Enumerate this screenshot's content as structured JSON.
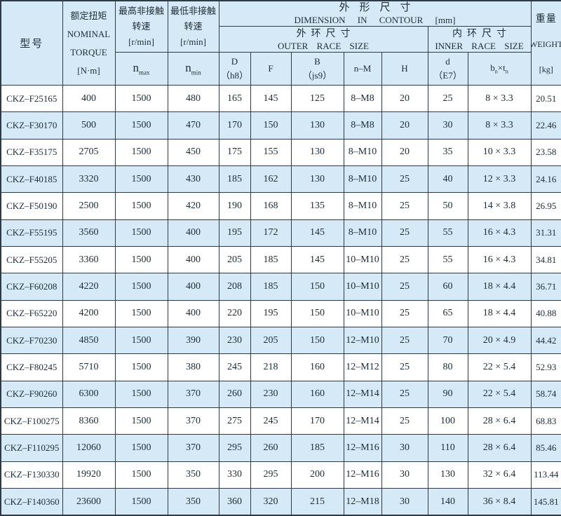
{
  "colors": {
    "header_and_zebra_fill": "#d5eaf6",
    "row_white_fill": "#ffffff",
    "grid_border": "#2c3b45",
    "text": "#1d2b35"
  },
  "table": {
    "header": {
      "model": "型号",
      "torque_lines": [
        "额定扭矩",
        "NOMINAL",
        "TORQUE",
        "[N·m]"
      ],
      "nmax_lines": [
        "最高非接触",
        "转速",
        "[r/min]"
      ],
      "nmin_lines": [
        "最低非接触",
        "转速",
        "[r/min]"
      ],
      "nmax_sym": {
        "base": "n",
        "sub": "max"
      },
      "nmin_sym": {
        "base": "n",
        "sub": "min"
      },
      "dimension_cn": "外形尺寸",
      "dimension_en": "DIMENSION IN CONTOUR [mm]",
      "outer_cn": "外环尺寸",
      "outer_en": "OUTER RACE SIZE",
      "inner_cn": "内环尺寸",
      "inner_en": "INNER RACE SIZE",
      "weight_lines": [
        "重量",
        "WEIGHT",
        "[kg]"
      ],
      "col_D": [
        "D",
        "（h8）"
      ],
      "col_F": "F",
      "col_B": [
        "B",
        "（js9）"
      ],
      "col_nM": "n–M",
      "col_H": "H",
      "col_d": [
        "d",
        "（E7）"
      ],
      "col_bt": {
        "b": "b",
        "b_sub": "n",
        "times": "×",
        "t": "t",
        "t_sub": "n"
      }
    },
    "col_keys": [
      "model",
      "torque",
      "n-max",
      "n-min",
      "D",
      "F",
      "B",
      "n-M",
      "H",
      "d",
      "b-t",
      "weight"
    ],
    "rows": [
      [
        "CKZ–F25165",
        "400",
        "1500",
        "480",
        "165",
        "145",
        "125",
        "8–M8",
        "20",
        "25",
        "8 × 3.3",
        "20.51"
      ],
      [
        "CKZ–F30170",
        "500",
        "1500",
        "470",
        "170",
        "150",
        "130",
        "8–M8",
        "20",
        "30",
        "8 × 3.3",
        "22.46"
      ],
      [
        "CKZ–F35175",
        "2705",
        "1500",
        "450",
        "175",
        "155",
        "130",
        "8–M10",
        "20",
        "35",
        "10 × 3.3",
        "23.58"
      ],
      [
        "CKZ–F40185",
        "3320",
        "1500",
        "430",
        "185",
        "162",
        "130",
        "8–M10",
        "25",
        "40",
        "12 × 3.3",
        "24.16"
      ],
      [
        "CKZ–F50190",
        "2500",
        "1500",
        "420",
        "190",
        "168",
        "135",
        "8–M10",
        "25",
        "50",
        "14 × 3.8",
        "26.95"
      ],
      [
        "CKZ–F55195",
        "3560",
        "1500",
        "400",
        "195",
        "172",
        "145",
        "8–M10",
        "25",
        "55",
        "16 × 4.3",
        "31.31"
      ],
      [
        "CKZ–F55205",
        "3360",
        "1500",
        "400",
        "205",
        "185",
        "145",
        "10–M10",
        "25",
        "55",
        "16 × 4.3",
        "34.81"
      ],
      [
        "CKZ–F60208",
        "4220",
        "1500",
        "400",
        "208",
        "185",
        "150",
        "10–M10",
        "25",
        "60",
        "18 × 4.4",
        "36.71"
      ],
      [
        "CKZ–F65220",
        "4200",
        "1500",
        "400",
        "220",
        "195",
        "150",
        "10–M10",
        "25",
        "65",
        "18 × 4.4",
        "40.88"
      ],
      [
        "CKZ–F70230",
        "4850",
        "1500",
        "390",
        "230",
        "205",
        "150",
        "12–M10",
        "25",
        "70",
        "20 × 4.9",
        "44.42"
      ],
      [
        "CKZ–F80245",
        "5710",
        "1500",
        "380",
        "245",
        "218",
        "160",
        "12–M12",
        "25",
        "80",
        "22 × 5.4",
        "52.93"
      ],
      [
        "CKZ–F90260",
        "6300",
        "1500",
        "370",
        "260",
        "230",
        "160",
        "12–M14",
        "25",
        "90",
        "22 × 5.4",
        "58.74"
      ],
      [
        "CKZ–F100275",
        "8360",
        "1500",
        "370",
        "275",
        "245",
        "170",
        "12–M14",
        "25",
        "100",
        "28 × 6.4",
        "68.83"
      ],
      [
        "CKZ–F110295",
        "12060",
        "1500",
        "370",
        "295",
        "260",
        "185",
        "12–M16",
        "30",
        "110",
        "28 × 6.4",
        "85.46"
      ],
      [
        "CKZ–F130330",
        "19920",
        "1500",
        "350",
        "330",
        "295",
        "200",
        "12–M16",
        "30",
        "130",
        "32 × 6.4",
        "113.44"
      ],
      [
        "CKZ–F140360",
        "23600",
        "1500",
        "350",
        "360",
        "320",
        "215",
        "12–M18",
        "30",
        "140",
        "36 × 8.4",
        "145.81"
      ]
    ]
  }
}
